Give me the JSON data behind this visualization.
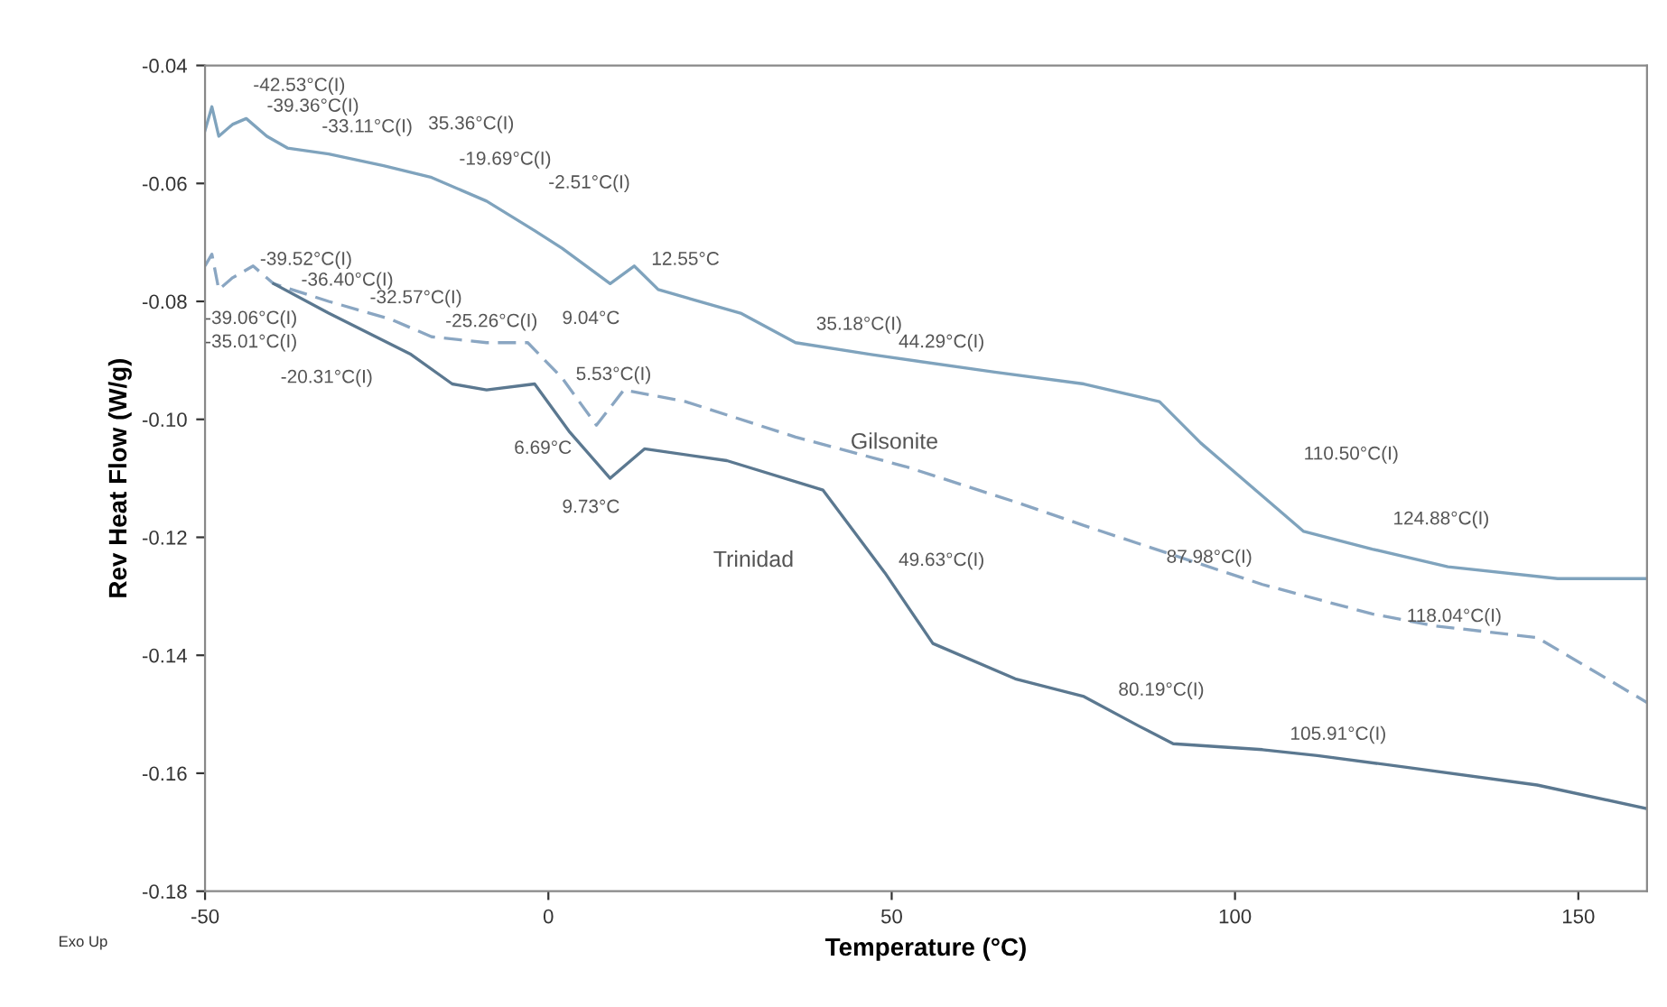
{
  "chart_data": {
    "type": "line",
    "xlabel": "Temperature (°C)",
    "ylabel": "Rev Heat Flow (W/g)",
    "xlim": [
      -50,
      160
    ],
    "xticks": [
      -50,
      0,
      50,
      100,
      150
    ],
    "ylim": [
      -0.18,
      -0.04
    ],
    "yticks": [
      {
        "value": -0.18,
        "label": "-0.18"
      },
      {
        "value": -0.16,
        "label": "-0.16"
      },
      {
        "value": -0.14,
        "label": "-0.14"
      },
      {
        "value": -0.12,
        "label": "-0.12"
      },
      {
        "value": -0.1,
        "label": "-0.10"
      },
      {
        "value": -0.08,
        "label": "-0.08"
      },
      {
        "value": -0.06,
        "label": "-0.06"
      },
      {
        "value": -0.04,
        "label": "-0.04"
      }
    ],
    "grid": false,
    "legend": false,
    "marker": "none",
    "series": [
      {
        "color": "#7fa3bd",
        "line_style": "solid",
        "x": [
          -50,
          -49,
          -48,
          -46,
          -44,
          -41,
          -38,
          -32,
          -24,
          -17,
          -9,
          -2,
          2,
          9,
          12.5,
          16,
          28,
          36,
          47,
          65,
          78,
          89,
          95,
          105,
          110,
          120,
          131,
          147,
          160
        ],
        "values": [
          -0.051,
          -0.047,
          -0.052,
          -0.05,
          -0.049,
          -0.052,
          -0.054,
          -0.055,
          -0.057,
          -0.059,
          -0.063,
          -0.068,
          -0.071,
          -0.077,
          -0.074,
          -0.078,
          -0.082,
          -0.087,
          -0.089,
          -0.092,
          -0.094,
          -0.097,
          -0.104,
          -0.114,
          -0.119,
          -0.122,
          -0.125,
          -0.127,
          -0.127
        ]
      },
      {
        "color": "#8aa6c2",
        "line_style": "dashed",
        "x": [
          -50,
          -49,
          -48,
          -46,
          -43,
          -40,
          -32,
          -23,
          -17,
          -9,
          -3,
          2,
          7,
          11,
          20,
          36,
          52,
          68,
          78,
          91,
          104,
          120,
          129,
          144,
          160
        ],
        "values": [
          -0.074,
          -0.072,
          -0.078,
          -0.076,
          -0.074,
          -0.077,
          -0.08,
          -0.083,
          -0.086,
          -0.087,
          -0.087,
          -0.093,
          -0.101,
          -0.095,
          -0.097,
          -0.103,
          -0.108,
          -0.114,
          -0.118,
          -0.123,
          -0.128,
          -0.133,
          -0.135,
          -0.137,
          -0.148
        ]
      },
      {
        "color": "#5b7890",
        "line_style": "solid",
        "x": [
          -40,
          -32,
          -20,
          -14,
          -9,
          -2,
          3,
          9,
          14,
          26,
          40,
          49,
          56,
          68,
          78,
          86,
          91,
          104,
          112,
          125,
          144,
          160
        ],
        "values": [
          -0.077,
          -0.082,
          -0.089,
          -0.094,
          -0.095,
          -0.094,
          -0.102,
          -0.11,
          -0.105,
          -0.107,
          -0.112,
          -0.126,
          -0.138,
          -0.144,
          -0.147,
          -0.152,
          -0.155,
          -0.156,
          -0.157,
          -0.159,
          -0.162,
          -0.166
        ]
      }
    ],
    "annotations": [
      "-42.53°C(I)",
      "-39.36°C(I)",
      "-33.11°C(I)",
      "35.36°C(I)",
      "-19.69°C(I)",
      "-2.51°C(I)",
      "12.55°C",
      "9.04°C",
      "35.18°C(I)",
      "44.29°C(I)",
      "110.50°C(I)",
      "124.88°C(I)",
      "-39.52°C(I)",
      "-36.40°C(I)",
      "-32.57°C(I)",
      "-25.26°C(I)",
      "-39.06°C(I)",
      "-35.01°C(I)",
      "-20.31°C(I)",
      "5.53°C(I)",
      "6.69°C",
      "9.73°C",
      "49.63°C(I)",
      "87.98°C(I)",
      "118.04°C(I)",
      "80.19°C(I)",
      "105.91°C(I)",
      "Gilsonite",
      "Trinidad",
      "Exo Up"
    ]
  }
}
